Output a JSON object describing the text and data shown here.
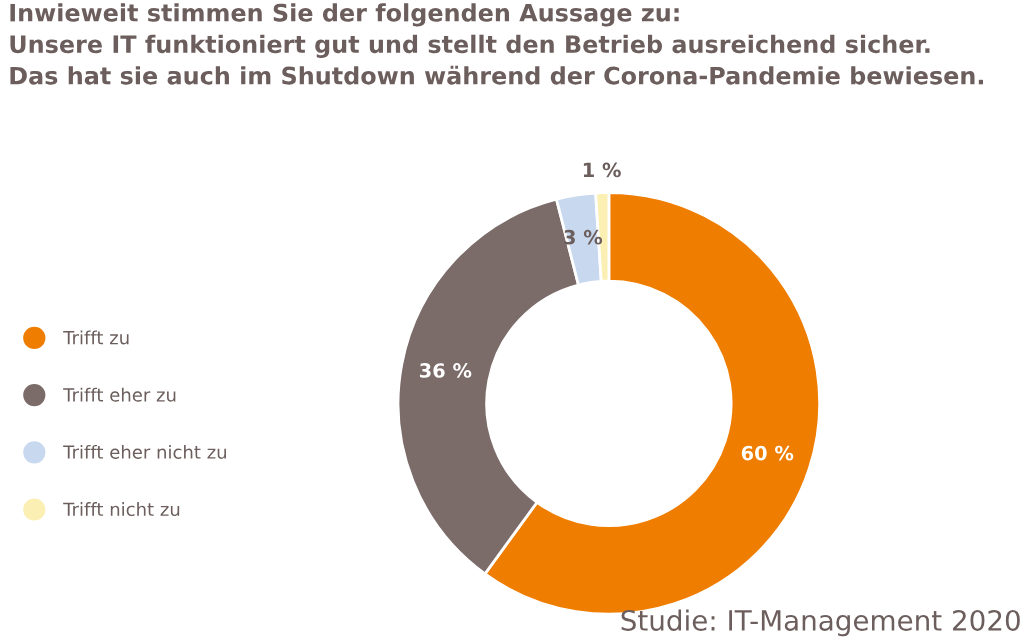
{
  "chart_data": {
    "type": "donut",
    "title": "Inwieweit stimmen Sie der folgenden Aussage zu:\nUnsere IT funktioniert gut und stellt den Betrieb ausreichend sicher.\nDas hat sie auch im Shutdown während der Corona-Pandemie bewiesen.",
    "categories": [
      "Trifft zu",
      "Trifft eher zu",
      "Trifft eher nicht zu",
      "Trifft nicht zu"
    ],
    "values": [
      60,
      36,
      3,
      1
    ],
    "colors": [
      "#ef7d00",
      "#7b6b69",
      "#c8d8ee",
      "#fbefb3"
    ],
    "value_labels": [
      "60 %",
      "36 %",
      "3 %",
      "1 %"
    ],
    "legend": "left",
    "annotations": [
      "Studie: IT-Management 2020"
    ]
  }
}
